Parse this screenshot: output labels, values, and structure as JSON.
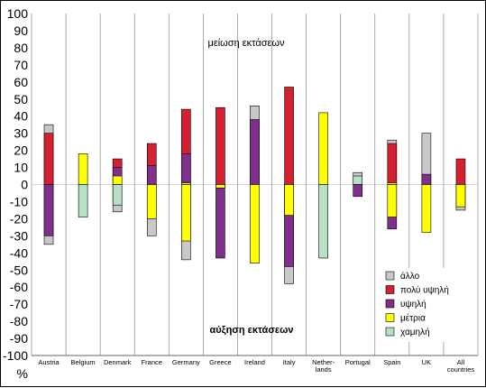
{
  "chart_data": {
    "type": "bar",
    "stacked": true,
    "grid": "vertical",
    "legend": "bottom-right",
    "ylim": [
      -100,
      100
    ],
    "yticks": [
      100,
      90,
      80,
      70,
      60,
      50,
      40,
      30,
      20,
      10,
      0,
      -10,
      -20,
      -30,
      -40,
      -50,
      -60,
      -70,
      -80,
      -90,
      -100
    ],
    "ylabel": "%",
    "categories": [
      "Austria",
      "Belgium",
      "Denmark",
      "France",
      "Germany",
      "Greece",
      "Ireland",
      "Italy",
      "Nether-|lands",
      "Portugal",
      "Spain",
      "UK",
      "All|countries"
    ],
    "annotations": {
      "top": "μείωση εκτάσεων",
      "bottom": "αύξηση εκτάσεων"
    },
    "series": [
      {
        "name": "χαμηλή",
        "color": "#b8e0c4",
        "positive": [
          0,
          0,
          0,
          0,
          0,
          0,
          0,
          0,
          0,
          5,
          0,
          0,
          0
        ],
        "negative": [
          0,
          -19,
          -12,
          0,
          0,
          0,
          0,
          0,
          -43,
          0,
          0,
          0,
          0
        ]
      },
      {
        "name": "μέτρια",
        "color": "#ffff00",
        "positive": [
          0,
          18,
          5,
          0,
          1,
          0,
          0,
          0,
          42,
          0,
          1,
          0,
          0
        ],
        "negative": [
          0,
          0,
          0,
          -20,
          -33,
          -2,
          -46,
          -18,
          0,
          0,
          -19,
          -28,
          -13
        ]
      },
      {
        "name": "υψηλή",
        "color": "#80308c",
        "positive": [
          0,
          0,
          10,
          11,
          18,
          0,
          38,
          0,
          0,
          0,
          0,
          6,
          0
        ],
        "negative": [
          -30,
          0,
          0,
          0,
          0,
          -43,
          0,
          -48,
          0,
          -7,
          -26,
          0,
          0
        ]
      },
      {
        "name": "πολύ υψηλή",
        "color": "#d42030",
        "positive": [
          30,
          0,
          15,
          24,
          44,
          45,
          0,
          57,
          0,
          0,
          24,
          0,
          15
        ],
        "negative": [
          0,
          0,
          0,
          0,
          0,
          0,
          0,
          0,
          0,
          0,
          0,
          0,
          0
        ]
      },
      {
        "name": "άλλο",
        "color": "#c8c8c8",
        "positive": [
          35,
          0,
          0,
          0,
          0,
          0,
          46,
          0,
          0,
          7,
          26,
          30,
          0
        ],
        "negative": [
          -35,
          0,
          -16,
          -30,
          -44,
          0,
          0,
          -58,
          0,
          0,
          0,
          0,
          -15
        ]
      }
    ]
  }
}
